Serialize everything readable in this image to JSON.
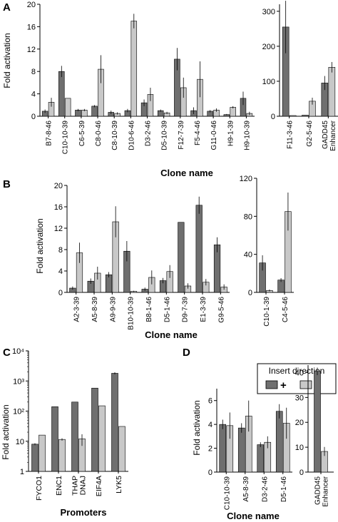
{
  "colors": {
    "plus": "#6f6f6f",
    "minus": "#c8c8c8",
    "axis": "#000000",
    "background": "#ffffff"
  },
  "legend": {
    "title": "Insert direction",
    "plus_label": "+",
    "minus_label": "–"
  },
  "chart_data": [
    {
      "panel": "A",
      "type": "bar",
      "ylabel": "Fold activation",
      "xlabel": "Clone name",
      "subplots": [
        {
          "categories": [
            "B7-8-46",
            "C10-10-39",
            "C6-5-39",
            "C8-0-46",
            "C8-10-39",
            "D10-6-46",
            "D3-2-46",
            "D5-10-39",
            "F12-7-39",
            "F5-4-46",
            "G11-0-46",
            "H9-1-39",
            "H9-10-39"
          ],
          "ylim": [
            0,
            20
          ],
          "yticks": [
            "0",
            "4",
            "8",
            "12",
            "16",
            "20"
          ],
          "series": [
            {
              "name": "+",
              "values": [
                0.9,
                8.0,
                1.1,
                1.8,
                0.7,
                1.0,
                2.4,
                1.0,
                10.2,
                1.0,
                0.9,
                0.3,
                3.2
              ],
              "errors": [
                0.3,
                1.0,
                0.2,
                0.2,
                0.3,
                0.3,
                0.6,
                0.2,
                2.0,
                0.6,
                0.2,
                0.1,
                1.2
              ]
            },
            {
              "name": "–",
              "values": [
                2.5,
                3.2,
                1.1,
                8.4,
                0.5,
                17.0,
                3.9,
                0.6,
                5.1,
                6.6,
                1.1,
                1.6,
                0.5
              ],
              "errors": [
                0.8,
                0,
                0.2,
                2.5,
                0.2,
                1.3,
                1.2,
                0.2,
                1.8,
                3.2,
                0.3,
                0.2,
                0.3
              ]
            }
          ]
        },
        {
          "categories": [
            "F11-3-46",
            "G2-5-46",
            "GADD45 Enhancer"
          ],
          "ylim": [
            0,
            320
          ],
          "yticks": [
            "0",
            "100",
            "200",
            "300"
          ],
          "series": [
            {
              "name": "+",
              "values": [
                255,
                3,
                95
              ],
              "errors": [
                75,
                0,
                20
              ]
            },
            {
              "name": "–",
              "values": [
                2,
                43,
                140
              ],
              "errors": [
                0,
                10,
                15
              ]
            }
          ]
        }
      ]
    },
    {
      "panel": "B",
      "type": "bar",
      "ylabel": "Fold activation",
      "xlabel": "Clone name",
      "subplots": [
        {
          "categories": [
            "A2-3-39",
            "A5-8-39",
            "A9-9-39",
            "B10-10-39",
            "B8-1-46",
            "D5-1-46",
            "D9-7-39",
            "E1-3-39",
            "G9-5-46"
          ],
          "ylim": [
            0,
            20
          ],
          "yticks": [
            "0",
            "4",
            "8",
            "12",
            "16",
            "20"
          ],
          "series": [
            {
              "name": "+",
              "values": [
                0.8,
                2.1,
                3.3,
                7.7,
                0.6,
                2.2,
                13.1,
                16.3,
                8.9
              ],
              "errors": [
                0.3,
                0.5,
                0.5,
                1.9,
                0.3,
                0.5,
                0,
                1.6,
                1.4
              ]
            },
            {
              "name": "–",
              "values": [
                7.4,
                3.6,
                13.2,
                0.2,
                2.8,
                3.9,
                1.2,
                1.9,
                1.0
              ],
              "errors": [
                1.9,
                1.2,
                2.9,
                0.1,
                1.3,
                1.2,
                0.5,
                0.6,
                0.5
              ]
            }
          ]
        },
        {
          "categories": [
            "C10-1-39",
            "C4-5-46"
          ],
          "ylim": [
            0,
            120
          ],
          "yticks": [
            "0",
            "40",
            "80",
            "120"
          ],
          "series": [
            {
              "name": "+",
              "values": [
                31,
                13
              ],
              "errors": [
                8,
                2
              ]
            },
            {
              "name": "–",
              "values": [
                2,
                85
              ],
              "errors": [
                1,
                20
              ]
            }
          ]
        }
      ]
    },
    {
      "panel": "C",
      "type": "bar",
      "ylabel": "Fold activation",
      "xlabel": "Promoters",
      "yscale": "log",
      "subplots": [
        {
          "categories": [
            "FYCO1",
            "ENC1",
            "THAP DNAJ",
            "EIF4A",
            "LYK5"
          ],
          "ylim": [
            1,
            10000
          ],
          "yticks": [
            "1",
            "10",
            "10²",
            "10³",
            "10⁴"
          ],
          "series": [
            {
              "name": "+",
              "values": [
                8,
                140,
                200,
                580,
                1800
              ],
              "errors": [
                0.6,
                0,
                0,
                0,
                150
              ]
            },
            {
              "name": "–",
              "values": [
                16,
                11.5,
                12,
                150,
                31
              ],
              "errors": [
                0,
                1,
                5,
                0,
                0
              ]
            }
          ]
        }
      ]
    },
    {
      "panel": "D",
      "type": "bar",
      "ylabel": "Fold activation",
      "xlabel": "Clone name",
      "subplots": [
        {
          "categories": [
            "C10-10-39",
            "A5-8-39",
            "D3-2-46",
            "D5-1-46"
          ],
          "ylim": [
            0,
            7
          ],
          "yticks": [
            "0",
            "2",
            "4",
            "6"
          ],
          "series": [
            {
              "name": "+",
              "values": [
                4.0,
                3.7,
                2.3,
                5.1
              ],
              "errors": [
                0.4,
                0.4,
                0.2,
                0.6
              ]
            },
            {
              "name": "–",
              "values": [
                3.9,
                4.7,
                2.5,
                4.1
              ],
              "errors": [
                1.1,
                1.3,
                0.5,
                1.3
              ]
            }
          ]
        },
        {
          "categories": [
            "GADD45 Enhancer"
          ],
          "ylim": [
            0,
            43
          ],
          "yticks": [
            "0",
            "10",
            "20",
            "30",
            "40"
          ],
          "series": [
            {
              "name": "+",
              "values": [
                40.5
              ],
              "errors": [
                1.5
              ]
            },
            {
              "name": "–",
              "values": [
                8.3
              ],
              "errors": [
                1.8
              ]
            }
          ]
        }
      ]
    }
  ]
}
